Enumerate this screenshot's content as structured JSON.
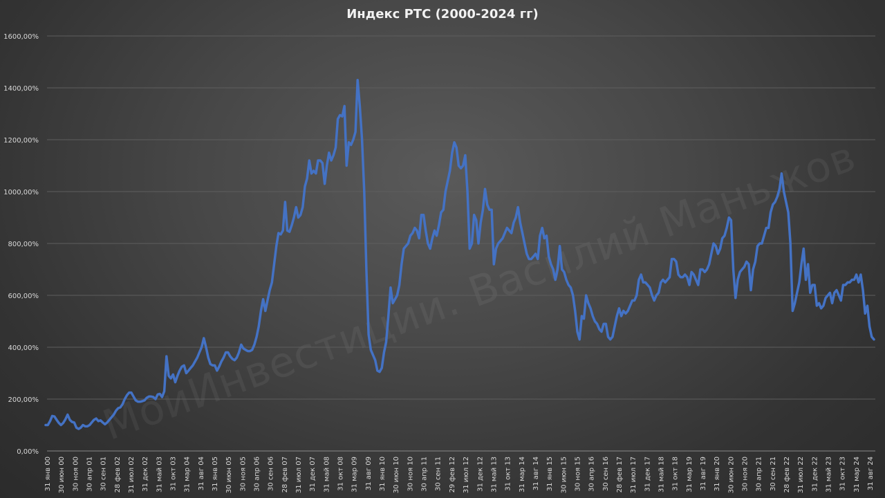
{
  "chart_data": {
    "type": "line",
    "title": "Индекс РТС (2000-2024 гг)",
    "watermark": "МоиИнвестиции. Василий Маньжов",
    "xlabel": "",
    "ylabel": "",
    "ylim": [
      0,
      1600
    ],
    "y_ticks": [
      "0,00%",
      "200,00%",
      "400,00%",
      "600,00%",
      "800,00%",
      "1000,00%",
      "1200,00%",
      "1400,00%",
      "1600,00%"
    ],
    "x_ticks": [
      "31 янв 00",
      "30 июн 00",
      "30 ноя 00",
      "30 апр 01",
      "30 сен 01",
      "28 фев 02",
      "31 июл 02",
      "31 дек 02",
      "31 май 03",
      "31 окт 03",
      "31 мар 04",
      "31 авг 04",
      "31 янв 05",
      "30 июн 05",
      "30 ноя 05",
      "30 апр 06",
      "30 сен 06",
      "28 фев 07",
      "31 июл 07",
      "31 дек 07",
      "31 май 08",
      "31 окт 08",
      "31 мар 09",
      "31 авг 09",
      "31 янв 10",
      "30 июн 10",
      "30 ноя 10",
      "30 апр 11",
      "30 сен 11",
      "29 фев 12",
      "31 июл 12",
      "31 дек 12",
      "31 май 13",
      "31 окт 13",
      "31 мар 14",
      "31 авг 14",
      "31 янв 15",
      "30 июн 15",
      "30 ноя 15",
      "30 апр 16",
      "30 сен 16",
      "28 фев 17",
      "31 июл 17",
      "31 дек 17",
      "31 май 18",
      "31 окт 18",
      "31 мар 19",
      "31 авг 19",
      "31 янв 20",
      "30 июн 20",
      "30 ноя 20",
      "30 апр 21",
      "30 сен 21",
      "28 фев 22",
      "31 июл 22",
      "31 дек 22",
      "31 май 23",
      "31 окт 23",
      "31 мар 24",
      "31 авг 24"
    ],
    "grid": true,
    "legend": "none",
    "line_color": "#4472c4",
    "series": [
      {
        "values": [
          100,
          100,
          115,
          135,
          133,
          120,
          108,
          100,
          108,
          122,
          140,
          120,
          112,
          110,
          90,
          85,
          90,
          100,
          95,
          95,
          100,
          110,
          120,
          125,
          115,
          118,
          110,
          103,
          110,
          120,
          130,
          140,
          155,
          165,
          168,
          180,
          200,
          215,
          225,
          225,
          210,
          195,
          190,
          190,
          192,
          195,
          205,
          210,
          210,
          208,
          200,
          218,
          220,
          208,
          230,
          365,
          290,
          280,
          295,
          265,
          290,
          310,
          325,
          330,
          300,
          310,
          320,
          330,
          345,
          360,
          380,
          400,
          435,
          400,
          360,
          335,
          330,
          330,
          310,
          325,
          345,
          360,
          380,
          380,
          365,
          355,
          350,
          360,
          380,
          410,
          395,
          390,
          385,
          385,
          390,
          410,
          440,
          480,
          540,
          585,
          540,
          580,
          620,
          650,
          720,
          790,
          840,
          835,
          850,
          960,
          850,
          845,
          870,
          900,
          940,
          900,
          910,
          940,
          1020,
          1050,
          1120,
          1070,
          1080,
          1070,
          1120,
          1120,
          1110,
          1030,
          1100,
          1150,
          1120,
          1140,
          1170,
          1280,
          1295,
          1290,
          1330,
          1100,
          1190,
          1180,
          1200,
          1230,
          1430,
          1330,
          1200,
          1000,
          700,
          450,
          390,
          370,
          350,
          310,
          305,
          320,
          380,
          420,
          520,
          630,
          570,
          585,
          600,
          640,
          720,
          780,
          790,
          800,
          830,
          840,
          860,
          850,
          820,
          910,
          910,
          850,
          800,
          780,
          820,
          850,
          830,
          870,
          920,
          930,
          1000,
          1040,
          1080,
          1150,
          1190,
          1170,
          1100,
          1090,
          1100,
          1140,
          1000,
          780,
          800,
          910,
          890,
          800,
          880,
          930,
          1010,
          950,
          930,
          930,
          720,
          780,
          800,
          810,
          820,
          840,
          860,
          850,
          840,
          880,
          900,
          940,
          880,
          840,
          800,
          760,
          740,
          740,
          750,
          760,
          740,
          830,
          860,
          820,
          830,
          750,
          720,
          700,
          660,
          700,
          790,
          700,
          690,
          660,
          640,
          630,
          600,
          540,
          460,
          430,
          520,
          510,
          600,
          570,
          550,
          520,
          500,
          490,
          470,
          460,
          490,
          490,
          440,
          430,
          440,
          480,
          520,
          550,
          520,
          540,
          530,
          540,
          560,
          580,
          580,
          600,
          660,
          680,
          650,
          650,
          640,
          630,
          600,
          580,
          600,
          610,
          650,
          660,
          650,
          660,
          670,
          740,
          740,
          730,
          680,
          670,
          670,
          680,
          670,
          640,
          690,
          680,
          660,
          640,
          700,
          700,
          690,
          700,
          720,
          760,
          800,
          790,
          760,
          780,
          820,
          830,
          860,
          900,
          890,
          700,
          590,
          660,
          690,
          700,
          710,
          730,
          720,
          620,
          700,
          730,
          790,
          800,
          800,
          830,
          860,
          860,
          920,
          950,
          960,
          980,
          1010,
          1070,
          1000,
          960,
          920,
          800,
          540,
          570,
          610,
          650,
          720,
          780,
          660,
          720,
          610,
          640,
          640,
          560,
          570,
          550,
          560,
          590,
          600,
          610,
          570,
          610,
          620,
          600,
          580,
          640,
          640,
          650,
          650,
          660,
          660,
          680,
          650,
          680,
          620,
          530,
          560,
          480,
          440,
          430
        ]
      }
    ]
  }
}
